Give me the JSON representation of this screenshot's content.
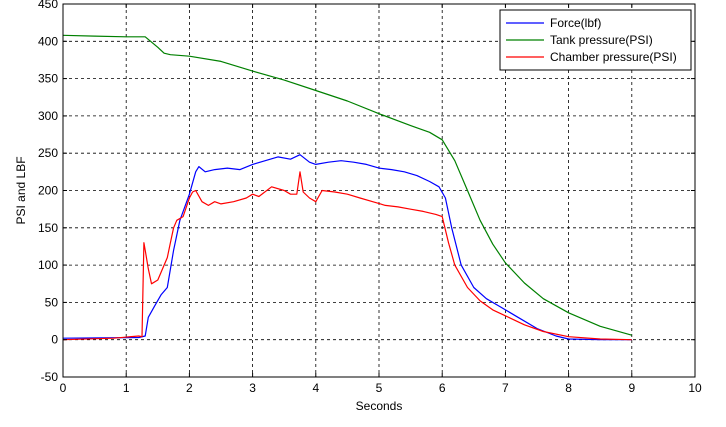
{
  "chart_data": {
    "type": "line",
    "title": "",
    "xlabel": "Seconds",
    "ylabel": "PSI and LBF",
    "xlim": [
      0,
      10
    ],
    "ylim": [
      -50,
      450
    ],
    "xticks": [
      0,
      1,
      2,
      3,
      4,
      5,
      6,
      7,
      8,
      9,
      10
    ],
    "yticks": [
      -50,
      0,
      50,
      100,
      150,
      200,
      250,
      300,
      350,
      400,
      450
    ],
    "grid": true,
    "legend_position": "top-right",
    "series": [
      {
        "name": "Force(lbf)",
        "color": "#0000ff",
        "x": [
          0,
          1.2,
          1.3,
          1.35,
          1.45,
          1.55,
          1.65,
          1.75,
          1.85,
          2.0,
          2.1,
          2.15,
          2.25,
          2.4,
          2.6,
          2.8,
          3.0,
          3.2,
          3.4,
          3.6,
          3.75,
          3.9,
          4.0,
          4.2,
          4.4,
          4.6,
          4.8,
          5.0,
          5.2,
          5.4,
          5.6,
          5.8,
          5.95,
          6.05,
          6.15,
          6.3,
          6.5,
          6.7,
          6.9,
          7.2,
          7.5,
          7.8,
          8.0,
          8.5,
          9.0
        ],
        "y": [
          2,
          3,
          5,
          30,
          45,
          60,
          70,
          120,
          160,
          195,
          225,
          232,
          225,
          228,
          230,
          228,
          235,
          240,
          245,
          242,
          248,
          238,
          235,
          238,
          240,
          238,
          235,
          230,
          228,
          225,
          220,
          212,
          205,
          190,
          150,
          100,
          70,
          55,
          45,
          30,
          15,
          5,
          1,
          0,
          0
        ]
      },
      {
        "name": "Tank pressure(PSI)",
        "color": "#008000",
        "x": [
          0,
          0.5,
          1.0,
          1.3,
          1.5,
          1.6,
          1.7,
          2.0,
          2.5,
          3.0,
          3.5,
          4.0,
          4.5,
          5.0,
          5.5,
          5.8,
          6.0,
          6.2,
          6.4,
          6.6,
          6.8,
          7.0,
          7.3,
          7.6,
          8.0,
          8.5,
          9.0
        ],
        "y": [
          408,
          407,
          406,
          406,
          392,
          384,
          382,
          380,
          373,
          360,
          348,
          334,
          320,
          303,
          287,
          278,
          268,
          240,
          200,
          160,
          128,
          103,
          76,
          55,
          36,
          18,
          6
        ]
      },
      {
        "name": "Chamber pressure(PSI)",
        "color": "#ff0000",
        "x": [
          0,
          0.8,
          1.2,
          1.25,
          1.28,
          1.3,
          1.35,
          1.4,
          1.5,
          1.6,
          1.65,
          1.7,
          1.75,
          1.8,
          1.9,
          2.0,
          2.05,
          2.1,
          2.2,
          2.3,
          2.4,
          2.5,
          2.7,
          2.9,
          3.0,
          3.1,
          3.3,
          3.5,
          3.6,
          3.7,
          3.75,
          3.8,
          3.9,
          4.0,
          4.1,
          4.3,
          4.5,
          4.7,
          4.9,
          5.1,
          5.3,
          5.5,
          5.7,
          5.9,
          6.0,
          6.1,
          6.2,
          6.4,
          6.6,
          6.8,
          7.0,
          7.3,
          7.6,
          8.0,
          8.5,
          9.0
        ],
        "y": [
          0,
          2,
          5,
          4,
          130,
          120,
          95,
          75,
          80,
          100,
          110,
          130,
          150,
          160,
          165,
          190,
          198,
          200,
          185,
          180,
          185,
          182,
          185,
          190,
          195,
          192,
          205,
          200,
          195,
          195,
          225,
          198,
          190,
          185,
          200,
          198,
          195,
          190,
          185,
          180,
          178,
          175,
          172,
          168,
          165,
          130,
          100,
          70,
          52,
          40,
          32,
          20,
          11,
          4,
          1,
          0
        ]
      }
    ]
  }
}
